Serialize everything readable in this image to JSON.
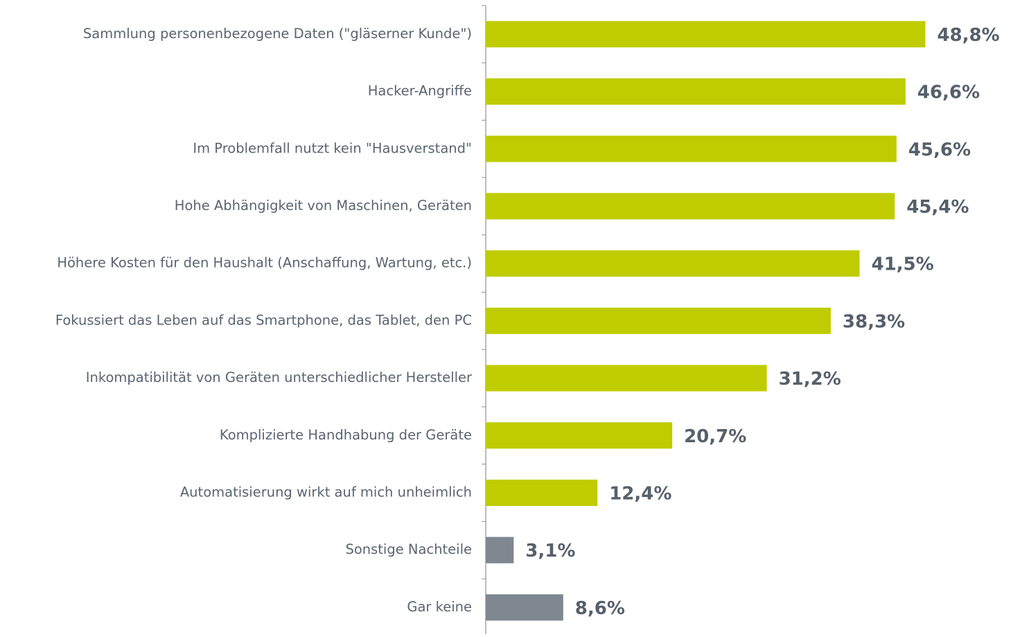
{
  "chart_data": {
    "type": "bar",
    "orientation": "horizontal",
    "categories": [
      "Sammlung personenbezogene Daten (\"gläserner Kunde\")",
      "Hacker-Angriffe",
      "Im Problemfall nutzt kein \"Hausverstand\"",
      "Hohe Abhängigkeit von Maschinen, Geräten",
      "Höhere Kosten für den Haushalt (Anschaffung, Wartung, etc.)",
      "Fokussiert das Leben auf das Smartphone, das Tablet, den PC",
      "Inkompatibilität von Geräten unterschiedlicher Hersteller",
      "Komplizierte Handhabung der Geräte",
      "Automatisierung wirkt auf mich unheimlich",
      "Sonstige Nachteile",
      "Gar keine"
    ],
    "values": [
      48.8,
      46.6,
      45.6,
      45.4,
      41.5,
      38.3,
      31.2,
      20.7,
      12.4,
      3.1,
      8.6
    ],
    "value_labels": [
      "48,8%",
      "46,6%",
      "45,6%",
      "45,4%",
      "41,5%",
      "38,3%",
      "31,2%",
      "20,7%",
      "12,4%",
      "3,1%",
      "8,6%"
    ],
    "colors": [
      "#bfcc00",
      "#bfcc00",
      "#bfcc00",
      "#bfcc00",
      "#bfcc00",
      "#bfcc00",
      "#bfcc00",
      "#bfcc00",
      "#bfcc00",
      "#7f8790",
      "#7f8790"
    ]
  }
}
